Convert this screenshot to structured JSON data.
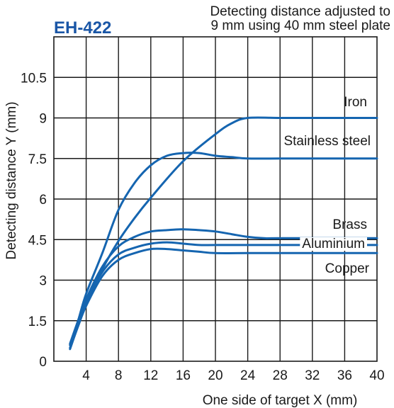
{
  "model": "EH-422",
  "note_lines": [
    "Detecting distance adjusted to",
    "9 mm using 40 mm steel plate"
  ],
  "colors": {
    "series": "#1565b0",
    "model": "#1a56a6",
    "grid": "#1a1a1a",
    "text": "#1a1a1a"
  },
  "chart_data": {
    "type": "line",
    "xlabel": "One side of target X (mm)",
    "ylabel": "Detecting distance Y (mm)",
    "xlim": [
      0,
      40
    ],
    "ylim": [
      0,
      12
    ],
    "xticks": [
      4,
      8,
      12,
      16,
      20,
      24,
      28,
      32,
      36,
      40
    ],
    "xtick_labels": [
      "4",
      "8",
      "12",
      "16",
      "20",
      "24",
      "28",
      "32",
      "36",
      "40"
    ],
    "yticks": [
      0,
      1.5,
      3,
      4.5,
      6,
      7.5,
      9,
      10.5
    ],
    "ytick_labels": [
      "0",
      "1.5",
      "3",
      "4.5",
      "6",
      "7.5",
      "9",
      "10.5"
    ],
    "grid": true,
    "series": [
      {
        "name": "Iron",
        "x": [
          2,
          3,
          4,
          6,
          8,
          10,
          12,
          16,
          20,
          22,
          24,
          28,
          32,
          40
        ],
        "y": [
          0.5,
          1.3,
          2.1,
          3.4,
          4.45,
          5.3,
          6.05,
          7.4,
          8.4,
          8.8,
          9.0,
          9.0,
          9.0,
          9.0
        ]
      },
      {
        "name": "Stainless steel",
        "x": [
          2,
          3,
          4,
          6,
          8,
          10,
          12,
          14,
          16,
          18,
          20,
          22,
          24,
          28,
          40
        ],
        "y": [
          0.6,
          1.5,
          2.5,
          4.0,
          5.6,
          6.6,
          7.25,
          7.6,
          7.7,
          7.7,
          7.6,
          7.55,
          7.5,
          7.5,
          7.5
        ]
      },
      {
        "name": "Brass",
        "x": [
          2,
          3,
          4,
          6,
          8,
          10,
          12,
          14,
          16,
          18,
          20,
          22,
          24,
          26,
          28,
          40
        ],
        "y": [
          0.65,
          1.5,
          2.3,
          3.5,
          4.25,
          4.6,
          4.8,
          4.85,
          4.88,
          4.85,
          4.8,
          4.7,
          4.6,
          4.55,
          4.55,
          4.55
        ]
      },
      {
        "name": "Aluminium",
        "x": [
          2,
          3,
          4,
          6,
          8,
          10,
          12,
          14,
          16,
          18,
          20,
          24,
          28,
          40
        ],
        "y": [
          0.6,
          1.4,
          2.2,
          3.3,
          3.95,
          4.2,
          4.35,
          4.4,
          4.35,
          4.3,
          4.3,
          4.3,
          4.3,
          4.3
        ]
      },
      {
        "name": "Copper",
        "x": [
          2,
          3,
          4,
          6,
          8,
          10,
          12,
          14,
          16,
          18,
          20,
          24,
          28,
          40
        ],
        "y": [
          0.45,
          1.3,
          2.05,
          3.15,
          3.75,
          4.0,
          4.15,
          4.15,
          4.1,
          4.05,
          4.0,
          4.0,
          4.0,
          4.0
        ]
      }
    ]
  }
}
